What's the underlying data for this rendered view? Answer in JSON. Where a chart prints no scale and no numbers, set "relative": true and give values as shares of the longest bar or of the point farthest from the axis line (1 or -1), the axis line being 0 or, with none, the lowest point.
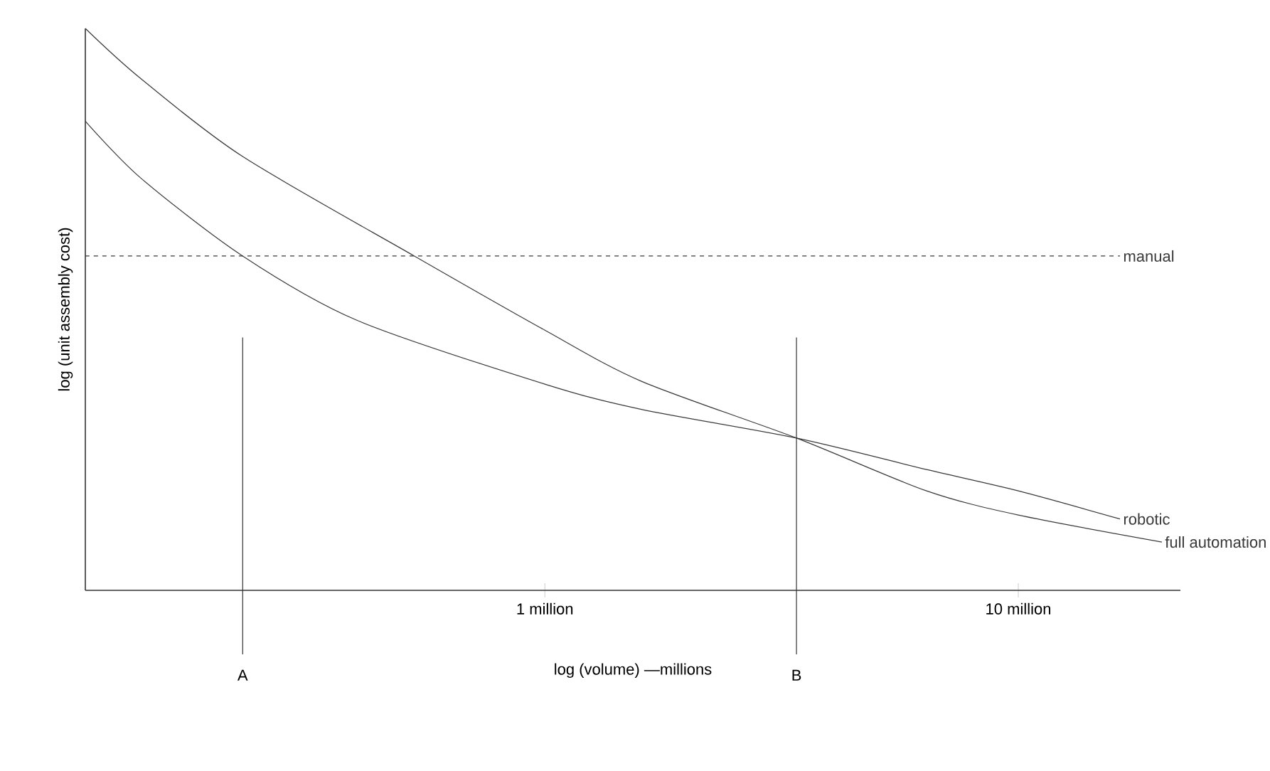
{
  "chart_data": {
    "type": "line",
    "relative": true,
    "xlabel": "log (volume) —millions",
    "ylabel": "log (unit assembly cost)",
    "log": "x",
    "xlim": [
      0.107,
      22
    ],
    "xticks": [
      {
        "value": 1,
        "label": "1 million"
      },
      {
        "value": 10,
        "label": "10 million"
      }
    ],
    "series": [
      {
        "name": "full automation",
        "color": "#3a3a3a",
        "x": [
          0.107,
          0.14,
          0.23,
          0.53,
          1,
          1.6,
          3.4,
          6.4,
          10,
          20.1
        ],
        "values": [
          1.0,
          0.911,
          0.772,
          0.595,
          0.463,
          0.372,
          0.271,
          0.177,
          0.134,
          0.086
        ]
      },
      {
        "name": "robotic",
        "color": "#3a3a3a",
        "x": [
          0.107,
          0.14,
          0.23,
          0.4,
          1,
          1.6,
          3.4,
          6.4,
          10,
          16.4
        ],
        "values": [
          0.835,
          0.734,
          0.595,
          0.481,
          0.367,
          0.322,
          0.271,
          0.215,
          0.177,
          0.127
        ]
      },
      {
        "name": "manual",
        "color": "#3a3a3a",
        "line_style": "dashed",
        "x": [
          0.107,
          16.4
        ],
        "values": [
          0.595,
          0.595
        ]
      }
    ],
    "ref_lines": [
      {
        "axis": "x",
        "value": 0.23,
        "label": "A"
      },
      {
        "axis": "x",
        "value": 3.4,
        "label": "B"
      }
    ]
  }
}
